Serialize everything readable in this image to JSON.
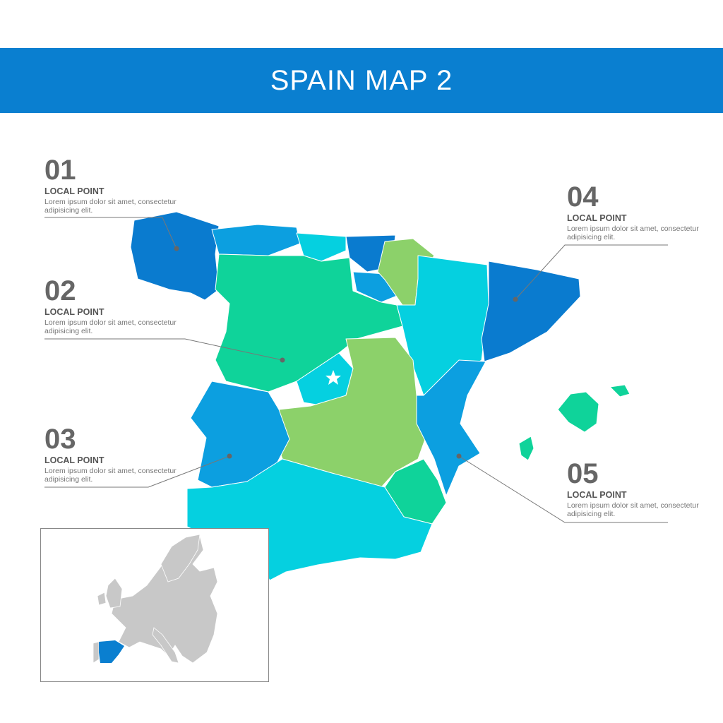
{
  "title": "SPAIN MAP 2",
  "colors": {
    "header": "#0a7fd0",
    "dark_blue": "#0a7bcf",
    "mid_blue": "#0c9fe0",
    "cyan": "#05d0e0",
    "teal": "#0fd39a",
    "light_green": "#8cd16a",
    "europe_gray": "#c8c8c8"
  },
  "callouts": [
    {
      "number": "01",
      "title": "LOCAL POINT",
      "text": "Lorem ipsum dolor sit amet, consectetur adipisicing elit."
    },
    {
      "number": "02",
      "title": "LOCAL POINT",
      "text": "Lorem ipsum dolor sit amet, consectetur adipisicing elit."
    },
    {
      "number": "03",
      "title": "LOCAL POINT",
      "text": "Lorem ipsum dolor sit amet, consectetur adipisicing elit."
    },
    {
      "number": "04",
      "title": "LOCAL POINT",
      "text": "Lorem ipsum dolor sit amet, consectetur adipisicing elit."
    },
    {
      "number": "05",
      "title": "LOCAL POINT",
      "text": "Lorem ipsum dolor sit amet, consectetur adipisicing elit."
    }
  ],
  "capital_marker": "star-icon"
}
